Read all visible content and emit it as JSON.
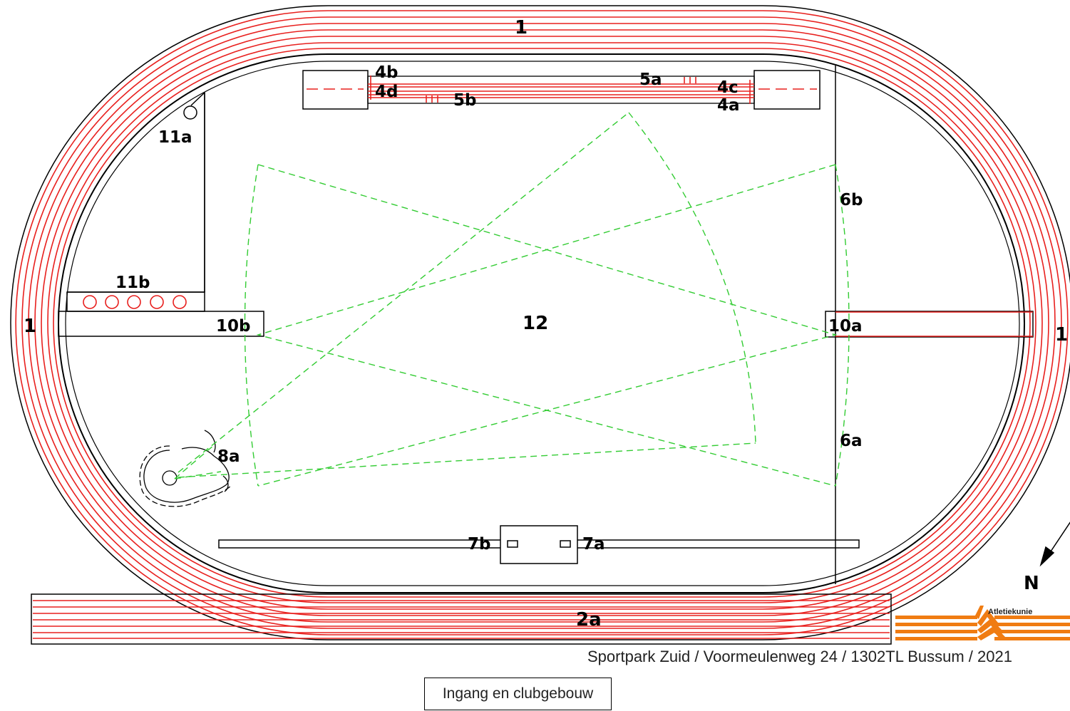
{
  "labels": {
    "track_top": "1",
    "track_left": "1",
    "track_right": "1",
    "l4b": "4b",
    "l4d": "4d",
    "l5a": "5a",
    "l5b": "5b",
    "l4c": "4c",
    "l4a": "4a",
    "l11a": "11a",
    "l11b": "11b",
    "l6b": "6b",
    "l6a": "6a",
    "l10b": "10b",
    "l10a": "10a",
    "l12": "12",
    "l8a": "8a",
    "l7b": "7b",
    "l7a": "7a",
    "l2a": "2a",
    "north": "N"
  },
  "logo_text": "Atletiekunie",
  "address": "Sportpark Zuid / Voormeulenweg 24 / 1302TL Bussum / 2021",
  "entrance": "Ingang en clubgebouw",
  "colors": {
    "lane": "#e8201e",
    "sector": "#33cc33",
    "outline": "#000000",
    "logo": "#f07c12"
  }
}
